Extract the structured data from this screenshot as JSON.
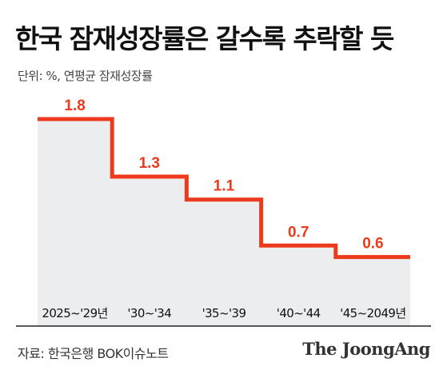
{
  "header": {
    "title": "한국 잠재성장률은 갈수록 추락할 듯",
    "unit_note": "단위: %, 연평균 잠재성장률"
  },
  "footer": {
    "source": "자료: 한국은행 BOK이슈노트",
    "brand": "The JoongAng"
  },
  "colors": {
    "line": "#ee3a1c",
    "bar_fill": "#ebedef",
    "value_label": "#ee3a1c",
    "divider": "#222222"
  },
  "chart_data": {
    "type": "bar",
    "categories": [
      "2025~'29년",
      "'30~'34",
      "'35~'39",
      "'40~'44",
      "'45~2049년"
    ],
    "values": [
      1.8,
      1.3,
      1.1,
      0.7,
      0.6
    ],
    "title": "한국 잠재성장률은 갈수록 추락할 듯",
    "ylabel": "",
    "xlabel": "",
    "ylim": [
      0,
      1.8
    ],
    "grid": false,
    "legend": "none",
    "style": "step-line-over-bars"
  }
}
